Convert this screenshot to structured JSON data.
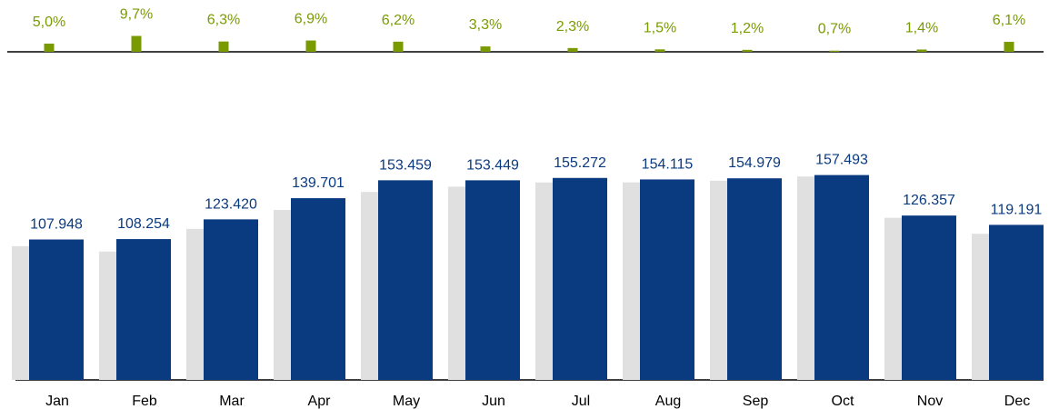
{
  "chart_data": [
    {
      "type": "bar",
      "values": [
        5.0,
        9.7,
        6.3,
        6.9,
        6.2,
        3.3,
        2.3,
        1.5,
        1.2,
        0.7,
        1.4,
        6.1
      ],
      "value_labels": [
        "5,0%",
        "9,7%",
        "6,3%",
        "6,9%",
        "6,2%",
        "3,3%",
        "2,3%",
        "1,5%",
        "1,2%",
        "0,7%",
        "1,4%",
        "6,1%"
      ],
      "color": "#7a9a01",
      "ylim": [
        0,
        10
      ]
    },
    {
      "type": "bar",
      "categories": [
        "Jan",
        "Feb",
        "Mar",
        "Apr",
        "May",
        "Jun",
        "Jul",
        "Aug",
        "Sep",
        "Oct",
        "Nov",
        "Dec"
      ],
      "series": [
        {
          "color": "#e0e0e0",
          "values": [
            102808,
            98682,
            116105,
            130684,
            144500,
            148547,
            151781,
            151837,
            153141,
            156398,
            124612,
            112338
          ]
        },
        {
          "color": "#0a3a80",
          "values": [
            107948,
            108254,
            123420,
            139701,
            153459,
            153449,
            155272,
            154115,
            154979,
            157493,
            126357,
            119191
          ],
          "value_labels": [
            "107.948",
            "108.254",
            "123.420",
            "139.701",
            "153.459",
            "153.449",
            "155.272",
            "154.115",
            "154.979",
            "157.493",
            "126.357",
            "119.191"
          ]
        }
      ],
      "ylim": [
        0,
        160000
      ]
    }
  ]
}
